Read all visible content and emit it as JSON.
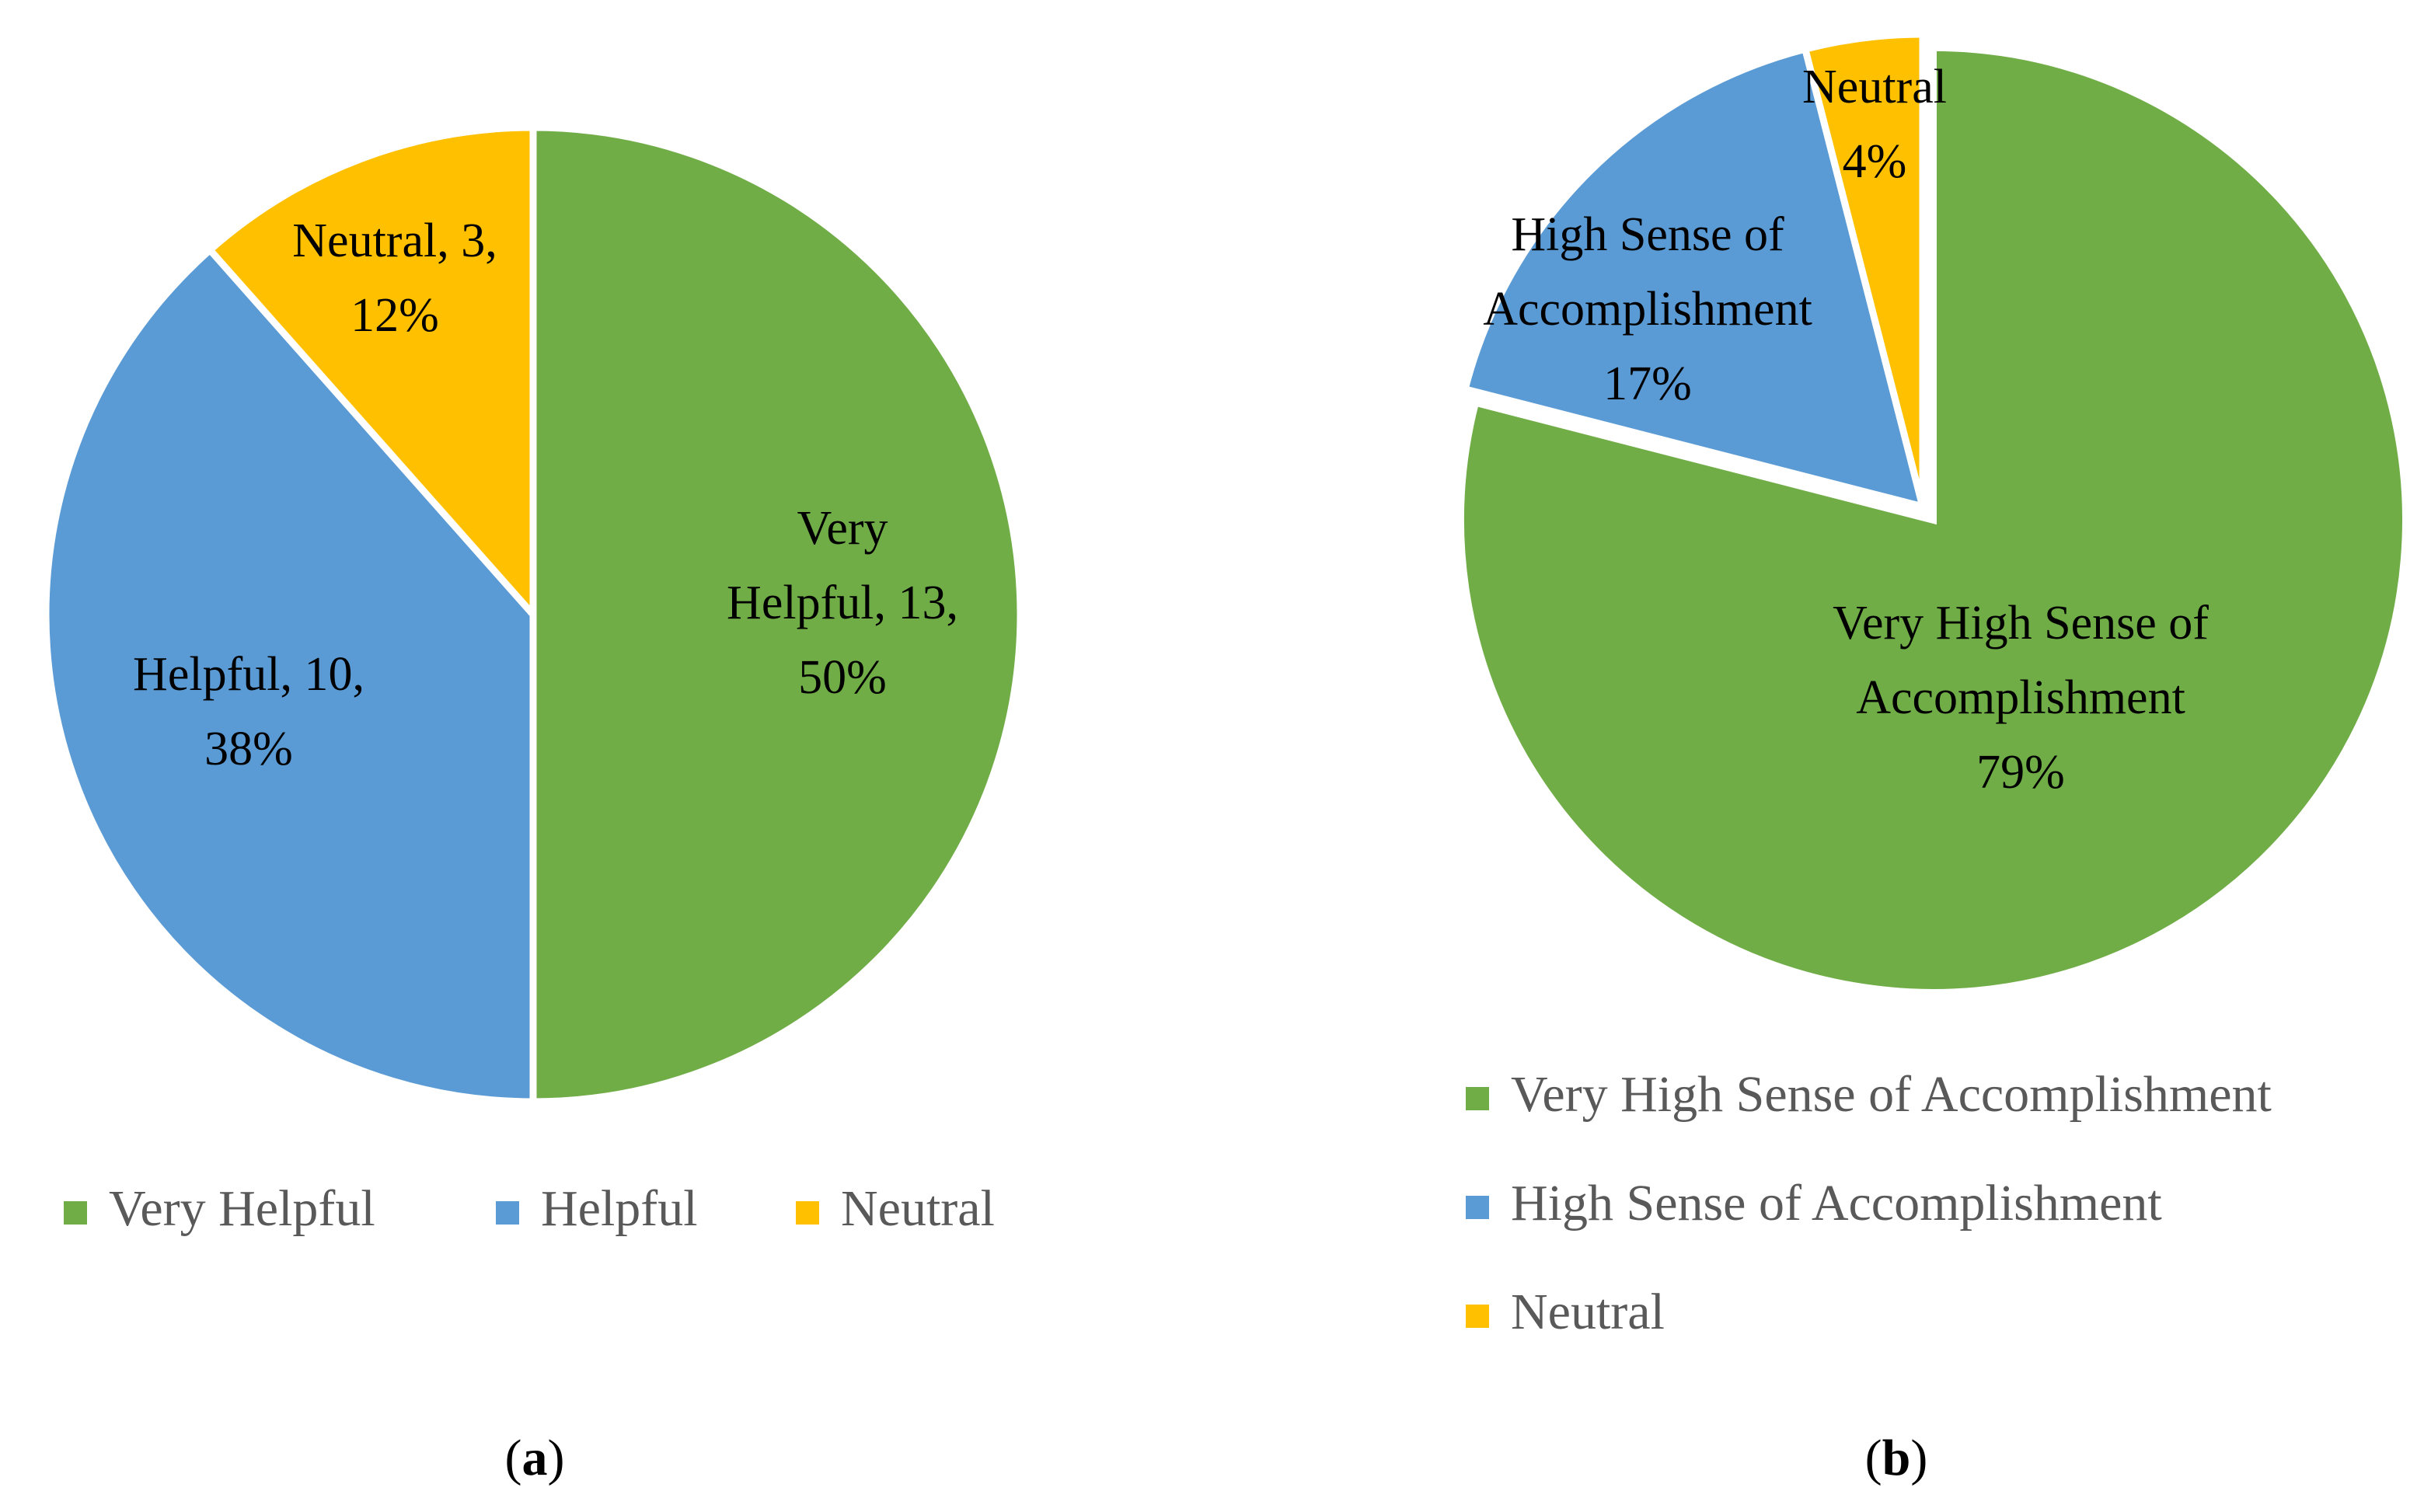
{
  "chart_data": [
    {
      "type": "pie",
      "caption": {
        "open": "(",
        "letter": "a",
        "close": ")"
      },
      "colors": {
        "Very Helpful": "#70AD47",
        "Helpful": "#5B9BD5",
        "Neutral": "#FFC000"
      },
      "slices": [
        {
          "label": "Very Helpful",
          "value": 13,
          "percent": 50,
          "color": "#70AD47",
          "data_label": [
            "Very",
            "Helpful, 13,",
            "50%"
          ]
        },
        {
          "label": "Helpful",
          "value": 10,
          "percent": 38,
          "color": "#5B9BD5",
          "data_label": [
            "Helpful, 10,",
            "38%"
          ]
        },
        {
          "label": "Neutral",
          "value": 3,
          "percent": 12,
          "color": "#FFC000",
          "data_label": [
            "Neutral, 3,",
            "12%"
          ]
        }
      ],
      "legend": {
        "position": "bottom",
        "entries": [
          {
            "label": "Very Helpful",
            "color": "#70AD47"
          },
          {
            "label": "Helpful",
            "color": "#5B9BD5"
          },
          {
            "label": "Neutral",
            "color": "#FFC000"
          }
        ]
      }
    },
    {
      "type": "pie",
      "caption": {
        "open": "(",
        "letter": "b",
        "close": ")"
      },
      "colors": {
        "Very High Sense of Accomplishment": "#70AD47",
        "High Sense of Accomplishment": "#5B9BD5",
        "Neutral": "#FFC000"
      },
      "slices": [
        {
          "label": "Very High Sense of Accomplishment",
          "percent": 79,
          "color": "#70AD47",
          "data_label": [
            "Very High Sense of",
            "Accomplishment",
            "79%"
          ]
        },
        {
          "label": "High Sense of Accomplishment",
          "percent": 17,
          "color": "#5B9BD5",
          "data_label": [
            "High Sense of",
            "Accomplishment",
            "17%"
          ]
        },
        {
          "label": "Neutral",
          "percent": 4,
          "color": "#FFC000",
          "data_label": [
            "Neutral",
            "4%"
          ]
        }
      ],
      "legend": {
        "position": "bottom",
        "entries": [
          {
            "label": "Very High Sense of Accomplishment",
            "color": "#70AD47"
          },
          {
            "label": "High Sense of Accomplishment",
            "color": "#5B9BD5"
          },
          {
            "label": "Neutral",
            "color": "#FFC000"
          }
        ]
      }
    }
  ]
}
